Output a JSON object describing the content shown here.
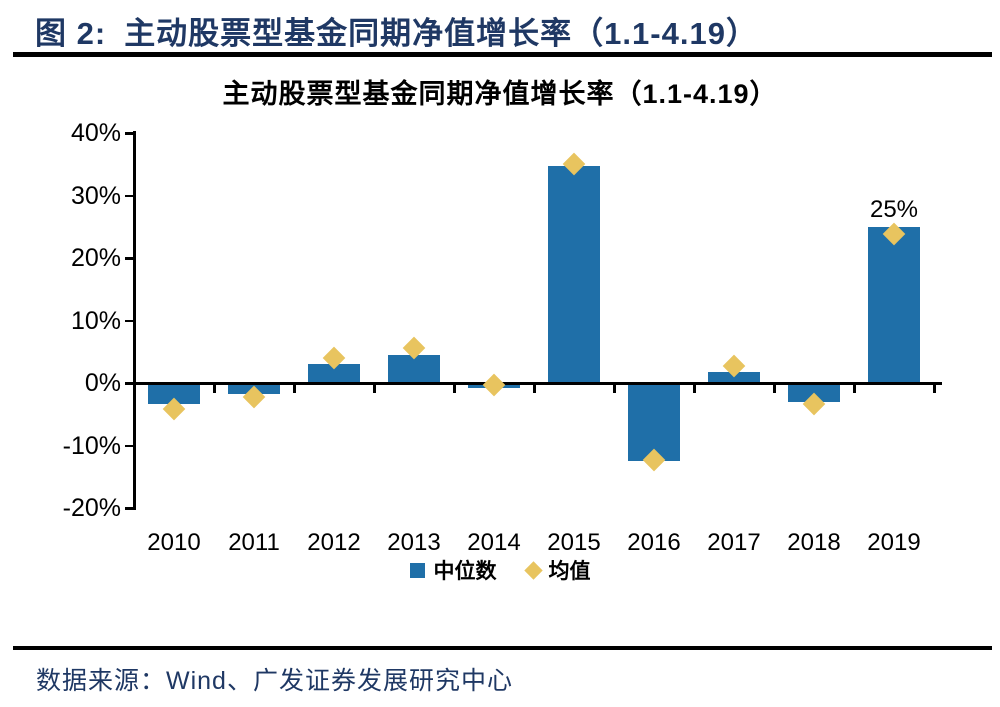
{
  "header": {
    "label": "图 2:",
    "title": "主动股票型基金同期净值增长率（1.1-4.19）"
  },
  "footer": {
    "source_text": "数据来源：Wind、广发证券发展研究中心"
  },
  "colors": {
    "bar_blue": "#1F6FA8",
    "marker_gold": "#E8C45F",
    "header_navy": "#1F3864",
    "axis_black": "#000000"
  },
  "chart_data": {
    "type": "bar",
    "title": "主动股票型基金同期净值增长率（1.1-4.19）",
    "categories": [
      "2010",
      "2011",
      "2012",
      "2013",
      "2014",
      "2015",
      "2016",
      "2017",
      "2018",
      "2019"
    ],
    "series": [
      {
        "name": "中位数",
        "type": "bar",
        "color": "#1F6FA8",
        "values": [
          -3.4,
          -1.7,
          3.1,
          4.5,
          -0.8,
          34.8,
          -12.4,
          1.8,
          -3.0,
          25.0
        ]
      },
      {
        "name": "均值",
        "type": "scatter",
        "marker": "diamond",
        "color": "#E8C45F",
        "values": [
          -4.2,
          -2.3,
          4.0,
          5.6,
          -0.3,
          35.0,
          -12.3,
          2.7,
          -3.3,
          23.8
        ]
      }
    ],
    "ylim": [
      -20,
      40
    ],
    "yticks": [
      {
        "value": 40,
        "label": "40%"
      },
      {
        "value": 30,
        "label": "30%"
      },
      {
        "value": 20,
        "label": "20%"
      },
      {
        "value": 10,
        "label": "10%"
      },
      {
        "value": 0,
        "label": "0%"
      },
      {
        "value": -10,
        "label": "-10%"
      },
      {
        "value": -20,
        "label": "-20%"
      }
    ],
    "annotations": [
      {
        "category": "2019",
        "series": "中位数",
        "text": "25%"
      }
    ],
    "legend_position": "bottom",
    "grid": false
  }
}
